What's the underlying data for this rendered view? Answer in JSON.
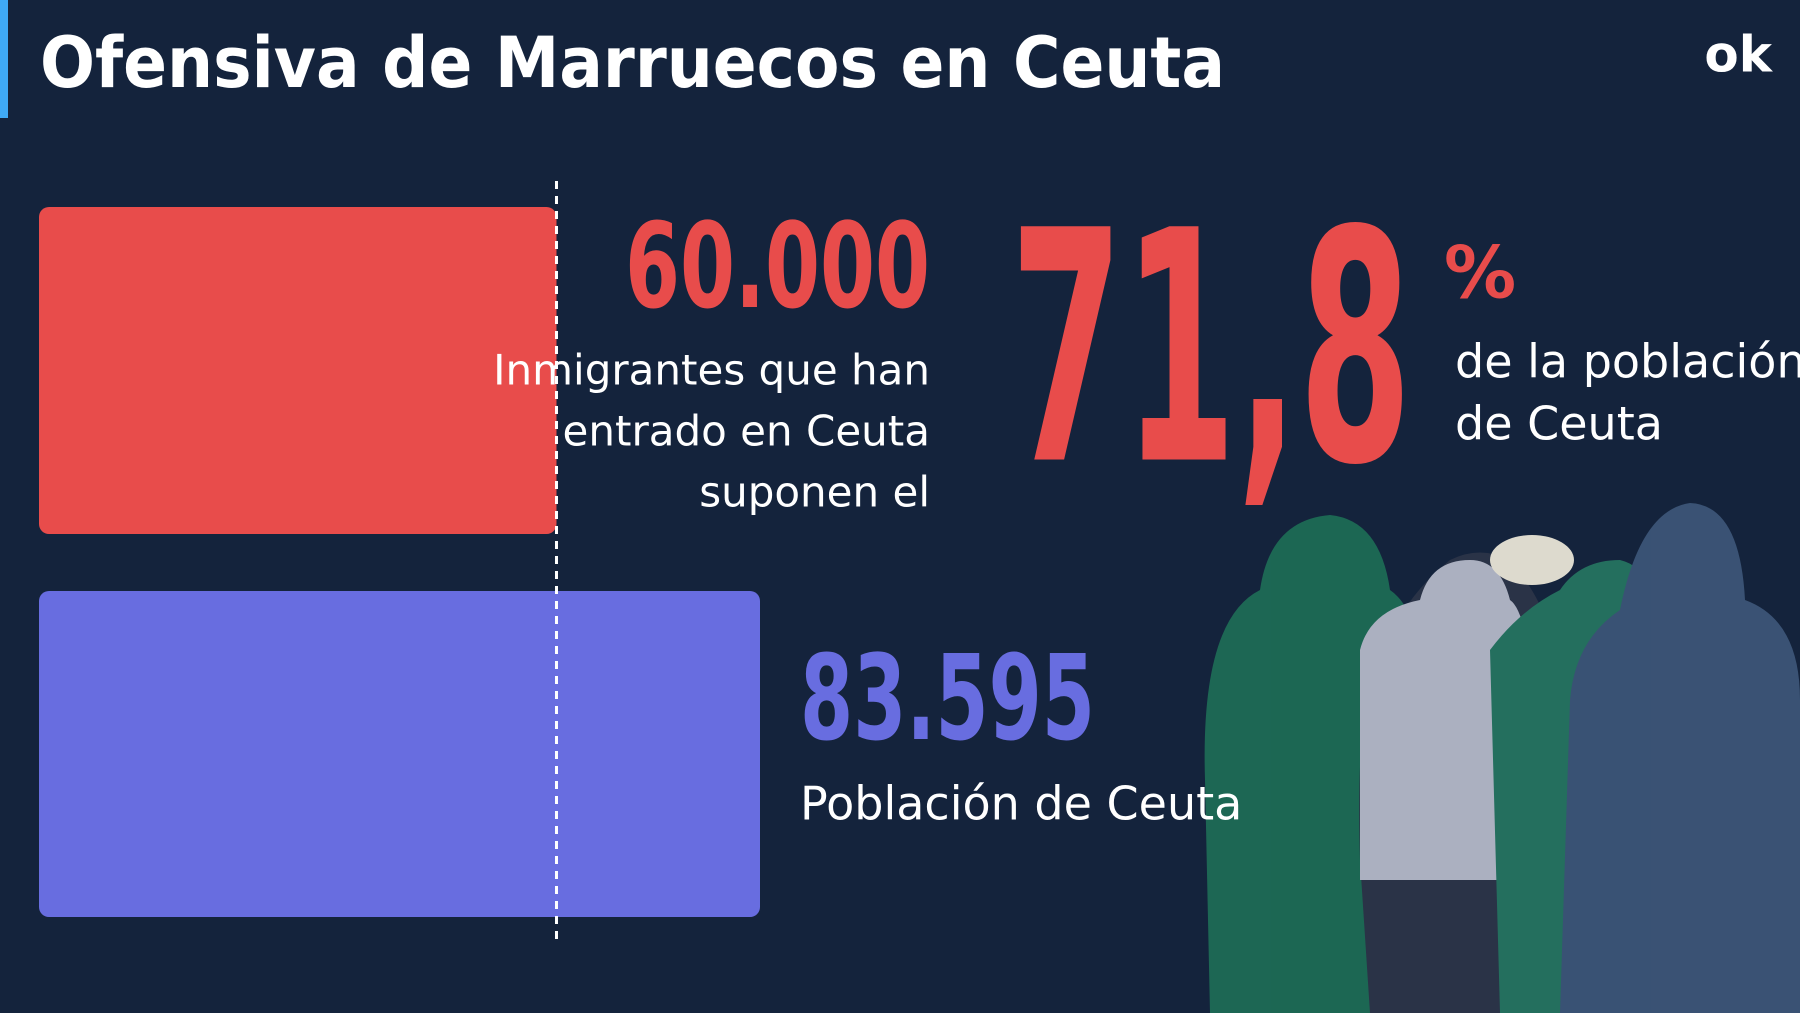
{
  "chart_data": {
    "type": "bar",
    "orientation": "horizontal",
    "title": "Ofensiva de Marruecos en Ceuta",
    "logo": "ok",
    "values": [
      60000,
      83595
    ],
    "value_labels": [
      "60.000",
      "83.595"
    ],
    "colors": [
      "#e84c4b",
      "#686de0"
    ],
    "descriptions": [
      [
        "Inmigrantes que han",
        "entrado en Ceuta",
        "suponen el"
      ],
      [
        "Población de Ceuta"
      ]
    ],
    "share": {
      "value": 71.8,
      "label": "71,8",
      "unit": "%",
      "description": [
        "de la población",
        "de Ceuta"
      ]
    }
  }
}
